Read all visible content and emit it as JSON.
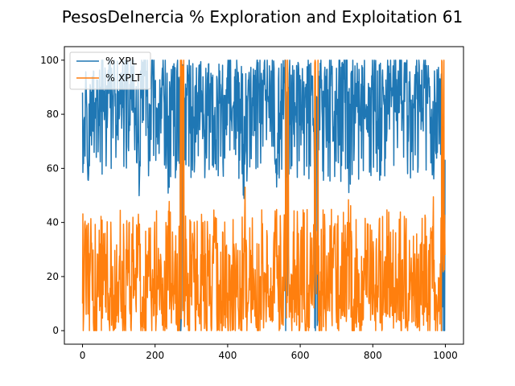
{
  "chart_data": {
    "type": "line",
    "title": "PesosDeInercia % Exploration and Exploitation 61",
    "xlabel": "",
    "ylabel": "",
    "xlim": [
      -50,
      1050
    ],
    "ylim": [
      -5,
      105
    ],
    "x_ticks": [
      0,
      200,
      400,
      600,
      800,
      1000
    ],
    "y_ticks": [
      0,
      20,
      40,
      60,
      80,
      100
    ],
    "grid": false,
    "legend_position": "top-left",
    "n_points": 1000,
    "series": [
      {
        "name": "% XPL",
        "color": "#1f77b4",
        "summary": {
          "typical_min": 55,
          "typical_max": 100,
          "overall_min": 0,
          "overall_max": 100
        },
        "values_every_10_iterations": [
          88,
          92,
          80,
          96,
          85,
          90,
          78,
          95,
          97,
          83,
          86,
          94,
          70,
          91,
          88,
          62,
          96,
          98,
          75,
          93,
          90,
          84,
          97,
          60,
          92,
          89,
          96,
          0,
          86,
          95,
          72,
          90,
          93,
          81,
          97,
          88,
          65,
          94,
          91,
          87,
          96,
          78,
          90,
          93,
          58,
          95,
          85,
          92,
          97,
          80,
          91,
          86,
          96,
          63,
          93,
          89,
          0,
          95,
          84,
          98,
          76,
          92,
          90,
          87,
          1,
          96,
          82,
          94,
          91,
          70,
          97,
          88,
          93,
          60,
          95,
          86,
          92,
          98,
          79,
          90,
          94,
          66,
          97,
          85,
          93,
          91,
          88,
          96,
          74,
          99,
          92,
          87,
          95,
          81,
          98,
          90,
          62,
          96,
          93,
          0
        ]
      },
      {
        "name": "% XPLT",
        "color": "#ff7f0e",
        "summary": {
          "typical_min": 0,
          "typical_max": 45,
          "overall_min": 0,
          "overall_max": 100
        },
        "values_every_10_iterations": [
          10,
          6,
          20,
          3,
          15,
          9,
          22,
          4,
          2,
          17,
          14,
          5,
          30,
          8,
          12,
          38,
          3,
          1,
          25,
          7,
          10,
          16,
          2,
          40,
          8,
          11,
          4,
          100,
          14,
          5,
          28,
          10,
          7,
          19,
          3,
          12,
          35,
          6,
          9,
          13,
          4,
          22,
          10,
          7,
          42,
          5,
          15,
          8,
          3,
          20,
          9,
          14,
          4,
          37,
          7,
          11,
          100,
          5,
          16,
          2,
          24,
          8,
          10,
          13,
          99,
          4,
          18,
          6,
          9,
          30,
          3,
          12,
          7,
          40,
          5,
          14,
          8,
          2,
          21,
          10,
          6,
          34,
          3,
          15,
          7,
          9,
          12,
          4,
          26,
          1,
          8,
          13,
          5,
          19,
          2,
          10,
          38,
          4,
          7,
          100
        ]
      }
    ]
  }
}
